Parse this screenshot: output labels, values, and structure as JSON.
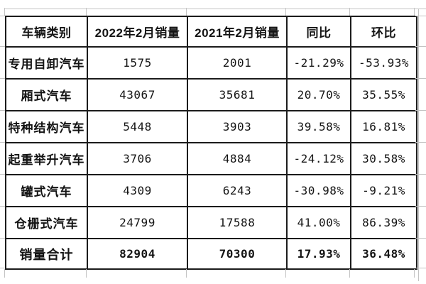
{
  "chart_data": {
    "type": "table",
    "title": "",
    "columns": [
      "车辆类别",
      "2022年2月销量",
      "2021年2月销量",
      "同比",
      "环比"
    ],
    "rows": [
      [
        "专用自卸汽车",
        "1575",
        "2001",
        "-21.29%",
        "-53.93%"
      ],
      [
        "厢式汽车",
        "43067",
        "35681",
        "20.70%",
        "35.55%"
      ],
      [
        "特种结构汽车",
        "5448",
        "3903",
        "39.58%",
        "16.81%"
      ],
      [
        "起重举升汽车",
        "3706",
        "4884",
        "-24.12%",
        "30.58%"
      ],
      [
        "罐式汽车",
        "4309",
        "6243",
        "-30.98%",
        "-9.21%"
      ],
      [
        "仓栅式汽车",
        "24799",
        "17588",
        "41.00%",
        "86.39%"
      ]
    ],
    "total_row": [
      "销量合计",
      "82904",
      "70300",
      "17.93%",
      "36.48%"
    ],
    "layout": {
      "grid": "on",
      "header_bold": true,
      "first_column_bold": true,
      "total_row_bold": true
    }
  },
  "colors": {
    "background": "#ffffff",
    "table_border": "#1b1b1b",
    "text": "#141414",
    "sheet_gridline": "#c3c3c3"
  }
}
